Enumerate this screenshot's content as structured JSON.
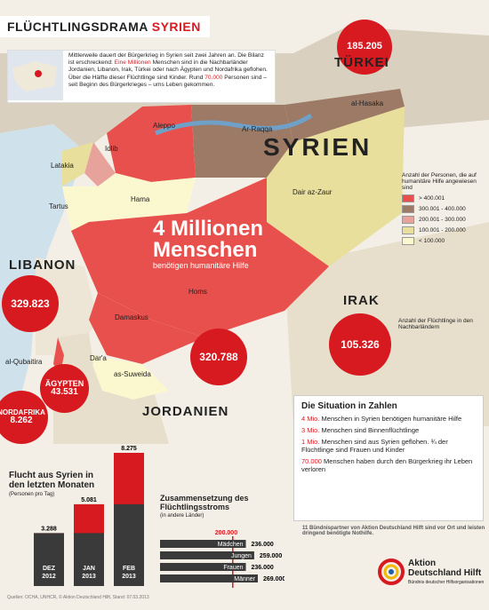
{
  "title": {
    "part1": "FLÜCHTLINGSDRAMA",
    "part2": "SYRIEN"
  },
  "intro": {
    "lead": "Mittlerweile dauert der Bürgerkrieg in Syrien seit zwei Jahren an. Die Bilanz ist erschreckend: ",
    "highlight1": "Eine Millionen",
    "mid": " Menschen sind in die Nachbarländer Jordanien, Libanon, Irak, Türkei oder nach Ägypten und Nordafrika geflohen. Über die Hälfte dieser Flüchtlinge sind Kinder. Rund ",
    "highlight2": "70.000",
    "tail": " Personen sind – seit Beginn des Bürgerkrieges – ums Leben gekommen."
  },
  "countries": {
    "turkey": "TÜRKEI",
    "syria": "SYRIEN",
    "lebanon": "LIBANON",
    "iraq": "IRAK",
    "jordan": "JORDANIEN"
  },
  "bubbles": {
    "turkey": "185.205",
    "lebanon": "329.823",
    "iraq": "105.326",
    "jordan": "320.788",
    "egypt_label": "ÄGYPTEN",
    "egypt": "43.531",
    "nafrica_label": "NORDAFRIKA",
    "nafrica": "8.262"
  },
  "cities": [
    "Aleppo",
    "al-Hasaka",
    "Ar-Raqqa",
    "Idlib",
    "Latakia",
    "Hama",
    "Tartus",
    "Dair az-Zaur",
    "Homs",
    "Damaskus",
    "al-Qubaitira",
    "Dar'a",
    "as-Suweida"
  ],
  "headline": {
    "big1": "4 Millionen",
    "big2": "Menschen",
    "sub": "benötigen humanitäre Hilfe"
  },
  "legend": {
    "title": "Anzahl der Personen, die auf humanitäre Hilfe angewiesen sind",
    "items": [
      {
        "label": "> 400.001",
        "color": "#e8504d"
      },
      {
        "label": "300.001 - 400.000",
        "color": "#9c7a66"
      },
      {
        "label": "200.001 - 300.000",
        "color": "#e7a39b"
      },
      {
        "label": "100.001 - 200.000",
        "color": "#e9df9c"
      },
      {
        "label": "< 100.000",
        "color": "#fbf7cf"
      }
    ]
  },
  "iraq_note": "Anzahl der Flüchtlinge in den Nachbarländern",
  "situation": {
    "title": "Die Situation in Zahlen",
    "items": [
      {
        "n": "4 Mio.",
        "t": " Menschen in Syrien benötigen humanitäre Hilfe"
      },
      {
        "n": "3 Mio.",
        "t": " Menschen sind Binnenflüchtlinge"
      },
      {
        "n": "1 Mio.",
        "t": " Menschen sind aus Syrien geflohen. ¾ der Flüchtlinge sind Frauen und Kinder"
      },
      {
        "n": "70.000",
        "t": " Menschen haben durch den Bürgerkrieg ihr Leben verloren"
      }
    ]
  },
  "partner_note": "11 Bündnispartner von Aktion Deutschland Hilft sind vor Ort und leisten dringend benötigte Nothilfe.",
  "logo": {
    "line1": "Aktion",
    "line2": "Deutschland Hilft",
    "line3": "Bündnis deutscher Hilfsorganisationen"
  },
  "footer": "Quellen: OCHA, UNHCR, © Aktion Deutschland Hilft, Stand: 07.03.2013",
  "flow": {
    "title1": "Flucht aus Syrien in",
    "title2": "den letzten Monaten",
    "sub": "(Personen pro Tag)"
  },
  "comp": {
    "title1": "Zusammensetzung des",
    "title2": "Flüchtlingsstroms",
    "sub": "(in andere Länder)"
  },
  "chart_data": [
    {
      "type": "bar",
      "title": "Flucht aus Syrien in den letzten Monaten",
      "subtitle": "(Personen pro Tag)",
      "categories": [
        "DEZ 2012",
        "JAN 2013",
        "FEB 2013"
      ],
      "values": [
        3288,
        5081,
        8275
      ],
      "labels": [
        "3.288",
        "5.081",
        "8.275"
      ]
    },
    {
      "type": "bar",
      "title": "Zusammensetzung des Flüchtlingsstroms",
      "subtitle": "(in andere Länder)",
      "categories": [
        "Mädchen",
        "Jungen",
        "Frauen",
        "Männer"
      ],
      "values": [
        236000,
        259000,
        236000,
        269000
      ],
      "labels": [
        "236.000",
        "259.000",
        "236.000",
        "269.000"
      ],
      "reference": {
        "value": 200000,
        "label": "200.000"
      }
    }
  ]
}
